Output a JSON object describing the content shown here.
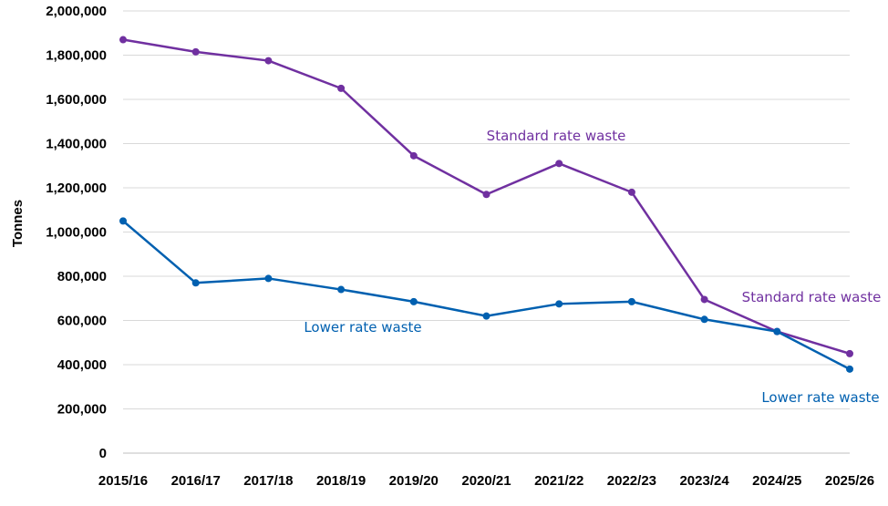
{
  "chart_data": {
    "type": "line",
    "title": "",
    "xlabel": "",
    "ylabel": "Tonnes",
    "ylim": [
      0,
      2000000
    ],
    "yticks": [
      0,
      200000,
      400000,
      600000,
      800000,
      1000000,
      1200000,
      1400000,
      1600000,
      1800000,
      2000000
    ],
    "ytick_labels": [
      "0",
      "200,000",
      "400,000",
      "600,000",
      "800,000",
      "1,000,000",
      "1,200,000",
      "1,400,000",
      "1,600,000",
      "1,800,000",
      "2,000,000"
    ],
    "grid": true,
    "categories": [
      "2015/16",
      "2016/17",
      "2017/18",
      "2018/19",
      "2019/20",
      "2020/21",
      "2021/22",
      "2022/23",
      "2023/24",
      "2024/25",
      "2025/26"
    ],
    "series": [
      {
        "name": "Standard rate waste",
        "color": "#7030a0",
        "values": [
          1870000,
          1815000,
          1775000,
          1650000,
          1345000,
          1170000,
          1310000,
          1180000,
          695000,
          550000,
          450000
        ]
      },
      {
        "name": "Lower rate waste",
        "color": "#0060b0",
        "values": [
          1050000,
          770000,
          790000,
          740000,
          685000,
          620000,
          675000,
          685000,
          605000,
          550000,
          380000
        ]
      }
    ],
    "annotations": [
      {
        "text": "Standard rate waste",
        "series": 0,
        "index": 5,
        "placement": "above-middle"
      },
      {
        "text": "Standard rate waste",
        "series": 0,
        "index": 10,
        "placement": "above-right"
      },
      {
        "text": "Lower rate waste",
        "series": 1,
        "index": 3,
        "placement": "below-middle"
      },
      {
        "text": "Lower rate waste",
        "series": 1,
        "index": 10,
        "placement": "below-right"
      }
    ]
  }
}
